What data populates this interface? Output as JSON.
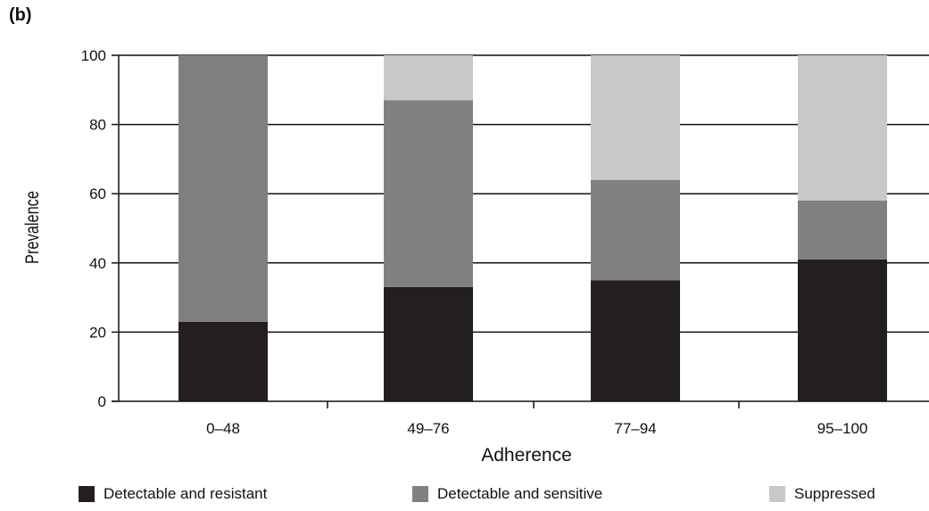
{
  "panel_label": "(b)",
  "colors": {
    "detectable_resistant": "#231f20",
    "detectable_sensitive": "#808080",
    "suppressed": "#c8c8c8"
  },
  "chart_data": {
    "type": "bar",
    "stacked": true,
    "categories": [
      "0–48",
      "49–76",
      "77–94",
      "95–100"
    ],
    "series": [
      {
        "name": "Detectable and resistant",
        "values": [
          23,
          33,
          35,
          41
        ]
      },
      {
        "name": "Detectable and sensitive",
        "values": [
          77,
          54,
          29,
          17
        ]
      },
      {
        "name": "Suppressed",
        "values": [
          0,
          13,
          36,
          42
        ]
      }
    ],
    "xlabel": "Adherence",
    "ylabel": "Prevalence",
    "ylim": [
      0,
      100
    ],
    "yticks": [
      0,
      20,
      40,
      60,
      80,
      100
    ],
    "grid": true,
    "legend_position": "bottom"
  },
  "legend": {
    "item1": "Detectable and resistant",
    "item2": "Detectable and sensitive",
    "item3": "Suppressed"
  }
}
